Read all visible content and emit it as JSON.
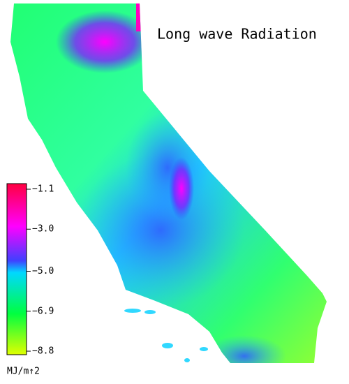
{
  "title": "Long wave Radiation",
  "colorbar": {
    "lim": [
      -8.8,
      -1.1
    ],
    "ticks": [
      {
        "value": -1.1,
        "label": "−1.1"
      },
      {
        "value": -3.0,
        "label": "−3.0"
      },
      {
        "value": -5.0,
        "label": "−5.0"
      },
      {
        "value": -6.9,
        "label": "−6.9"
      },
      {
        "value": -8.8,
        "label": "−8.8"
      }
    ],
    "unit": "MJ/m↑2"
  }
}
